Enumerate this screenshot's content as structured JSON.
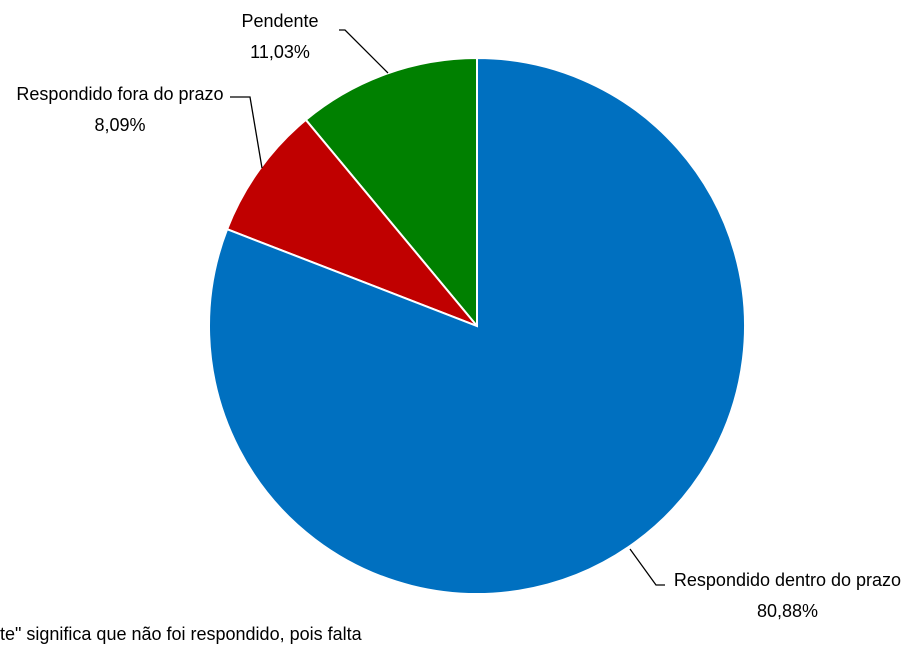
{
  "chart_data": {
    "type": "pie",
    "categories": [
      "Respondido dentro do prazo",
      "Respondido fora do prazo",
      "Pendente"
    ],
    "values": [
      80.88,
      8.09,
      11.03
    ],
    "value_labels": [
      "80,88%",
      "8,09%",
      "11,03%"
    ],
    "colors": [
      "#0070c0",
      "#c00000",
      "#008000"
    ],
    "annotation": "te\" significa que não foi respondido, pois falta"
  }
}
